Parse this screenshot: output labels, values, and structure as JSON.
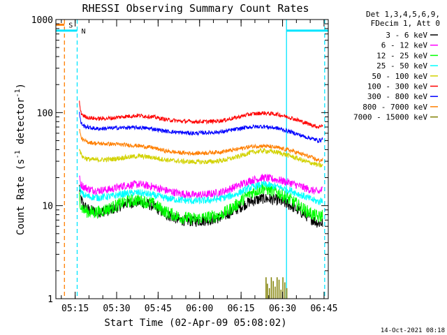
{
  "chart_data": {
    "type": "line",
    "title": "RHESSI Observing Summary Count Rates",
    "xlabel": "Start Time (02-Apr-09 05:08:02)",
    "ylabel_main": "Count Rate (s",
    "ylabel_sup1": "-1",
    "ylabel_mid": " detector",
    "ylabel_sup2": "-1",
    "ylabel_end": ")",
    "yscale": "log",
    "ylim": [
      1,
      1000
    ],
    "xlim_minutes": [
      0,
      98.5
    ],
    "x_ticks": [
      {
        "label": "05:15",
        "min": 6.97
      },
      {
        "label": "05:30",
        "min": 21.97
      },
      {
        "label": "05:45",
        "min": 36.97
      },
      {
        "label": "06:00",
        "min": 51.97
      },
      {
        "label": "06:15",
        "min": 66.97
      },
      {
        "label": "06:30",
        "min": 81.97
      },
      {
        "label": "06:45",
        "min": 96.97
      }
    ],
    "y_ticks": [
      {
        "label": "1",
        "value": 1
      },
      {
        "label": "10",
        "value": 10
      },
      {
        "label": "100",
        "value": 100
      },
      {
        "label": "1000",
        "value": 1000
      }
    ],
    "legend_header": [
      "Det 1,3,4,5,6,9,",
      "FDecim 1, Att 0"
    ],
    "series": [
      {
        "name": "3 - 6 keV",
        "color": "#000000",
        "x": [
          8.5,
          9,
          10,
          12,
          15,
          20,
          25,
          30,
          35,
          40,
          45,
          50,
          55,
          60,
          65,
          70,
          75,
          80,
          85,
          90,
          93,
          95,
          96.5
        ],
        "values": [
          16,
          12,
          10,
          9,
          8.5,
          9,
          10.5,
          11,
          10,
          8,
          7,
          6.8,
          7,
          7.5,
          9,
          11,
          12,
          11.5,
          10,
          8,
          7,
          6.5,
          6.5
        ]
      },
      {
        "name": "6 - 12 keV",
        "color": "#ff00ff",
        "x": [
          8.5,
          9,
          10,
          12,
          15,
          20,
          25,
          30,
          35,
          40,
          45,
          50,
          55,
          60,
          65,
          70,
          75,
          80,
          85,
          90,
          93,
          95,
          96.5
        ],
        "values": [
          20,
          17,
          16,
          15,
          14.5,
          15,
          16.5,
          17,
          16,
          14.5,
          13.5,
          13,
          13.2,
          14,
          16,
          18.5,
          20,
          19,
          17.5,
          15.5,
          14.5,
          14,
          15
        ]
      },
      {
        "name": "12 - 25 keV",
        "color": "#00ff00",
        "x": [
          8.5,
          9,
          10,
          12,
          15,
          20,
          25,
          30,
          35,
          40,
          45,
          50,
          55,
          60,
          65,
          70,
          75,
          80,
          85,
          90,
          93,
          95,
          96.5
        ],
        "values": [
          13,
          10,
          9,
          8.5,
          8.5,
          9.5,
          11,
          11.5,
          10.5,
          8.5,
          7.5,
          7.2,
          7.5,
          8,
          10,
          13.5,
          15.5,
          14,
          11.5,
          9,
          8,
          7.5,
          8
        ]
      },
      {
        "name": "25 - 50 keV",
        "color": "#00ffff",
        "x": [
          8.5,
          9,
          10,
          12,
          15,
          20,
          25,
          30,
          35,
          40,
          45,
          50,
          55,
          60,
          65,
          70,
          75,
          80,
          85,
          90,
          93,
          95,
          96.5
        ],
        "values": [
          16,
          14,
          13,
          12.5,
          12.2,
          12.6,
          13.5,
          13.8,
          13,
          12,
          11.5,
          11.2,
          11.4,
          12,
          13.2,
          15.5,
          17,
          16,
          14.5,
          12.5,
          11.5,
          11,
          11.5
        ]
      },
      {
        "name": "50 - 100 keV",
        "color": "#d2d200",
        "x": [
          8.5,
          9,
          10,
          12,
          15,
          20,
          25,
          30,
          35,
          40,
          45,
          50,
          55,
          60,
          65,
          70,
          75,
          80,
          85,
          90,
          93,
          95,
          96.5
        ],
        "values": [
          42,
          36,
          33,
          31.5,
          31,
          31.5,
          33,
          34,
          33,
          31,
          30,
          29.5,
          29.5,
          30.5,
          33,
          37,
          39,
          37.5,
          34,
          30,
          28.5,
          27,
          27
        ]
      },
      {
        "name": "100 - 300 keV",
        "color": "#ff0000",
        "x": [
          8.5,
          9,
          10,
          12,
          15,
          20,
          25,
          30,
          35,
          40,
          45,
          50,
          55,
          60,
          65,
          70,
          75,
          80,
          85,
          90,
          93,
          95,
          96.5
        ],
        "values": [
          130,
          100,
          92,
          88,
          86,
          87,
          91,
          93,
          90,
          84,
          81,
          80,
          80,
          82,
          88,
          96,
          99,
          96,
          88,
          78,
          73,
          70,
          74
        ]
      },
      {
        "name": "300 - 800 keV",
        "color": "#0000ff",
        "x": [
          8.5,
          9,
          10,
          12,
          15,
          20,
          25,
          30,
          35,
          40,
          45,
          50,
          55,
          60,
          65,
          70,
          75,
          80,
          85,
          90,
          93,
          95,
          96.5
        ],
        "values": [
          100,
          78,
          72,
          69,
          67,
          68,
          69,
          69,
          67,
          63,
          61,
          60,
          61,
          62,
          66,
          70,
          71,
          68,
          62,
          55,
          52,
          50,
          52
        ]
      },
      {
        "name": "800 - 7000 keV",
        "color": "#ff7f00",
        "x": [
          8.5,
          9,
          10,
          12,
          15,
          20,
          25,
          30,
          35,
          40,
          45,
          50,
          55,
          60,
          65,
          70,
          75,
          80,
          85,
          90,
          93,
          95,
          96.5
        ],
        "values": [
          68,
          55,
          50,
          48,
          46.5,
          46,
          45,
          44,
          42,
          38.5,
          37,
          36.5,
          37,
          38,
          40,
          43,
          44,
          42,
          39,
          35,
          32.5,
          30.5,
          31
        ]
      },
      {
        "name": "7000 - 15000 keV",
        "color": "#7f7f00",
        "x": [
          76.0,
          76.5,
          77.2,
          77.9,
          78.6,
          79.3,
          80.0,
          80.7,
          81.4,
          82.1,
          82.8,
          83.5
        ],
        "values": [
          1.7,
          1.45,
          1.3,
          1.7,
          1.55,
          1.35,
          1.7,
          1.6,
          1.25,
          1.7,
          1.5,
          1.3
        ]
      }
    ],
    "annotations": [
      {
        "label": "S",
        "color": "#ff7f00",
        "segment_min": [
          0,
          3.1
        ],
        "value": 880
      },
      {
        "label": "N",
        "color": "#00e5ff",
        "segment_min": [
          0,
          7.7
        ],
        "value": 760
      },
      {
        "label": "",
        "color": "#00e5ff",
        "segment_min": [
          83.4,
          98.5
        ],
        "value": 760
      }
    ],
    "markers": [
      {
        "kind": "dashed",
        "color": "#ff7f00",
        "min": 3.1
      },
      {
        "kind": "dashed",
        "color": "#00e5ff",
        "min": 7.7
      },
      {
        "kind": "solid",
        "color": "#00e5ff",
        "min": 83.4
      },
      {
        "kind": "dashed",
        "color": "#00e5ff",
        "min": 97.2
      }
    ],
    "footer": "14-Oct-2021 08:18"
  }
}
